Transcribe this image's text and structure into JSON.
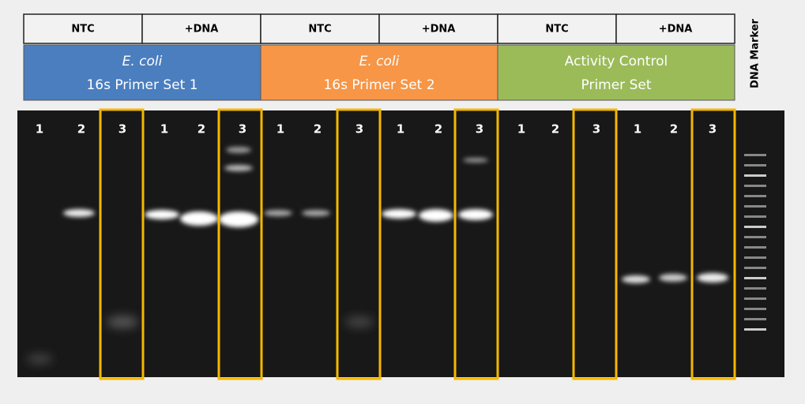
{
  "header": {
    "cells": [
      "NTC",
      "+DNA",
      "NTC",
      "+DNA",
      "NTC",
      "+DNA"
    ]
  },
  "groups": [
    {
      "title": "E. coli",
      "subtitle": "16s Primer Set 1"
    },
    {
      "title": "E. coli",
      "subtitle": "16s Primer Set 2"
    },
    {
      "title": "Activity Control",
      "subtitle": "Primer Set"
    }
  ],
  "marker": "DNA Marker",
  "lanes": [
    "1",
    "2",
    "3",
    "1",
    "2",
    "3",
    "1",
    "2",
    "3",
    "1",
    "2",
    "3",
    "1",
    "2",
    "3",
    "1",
    "2",
    "3"
  ]
}
